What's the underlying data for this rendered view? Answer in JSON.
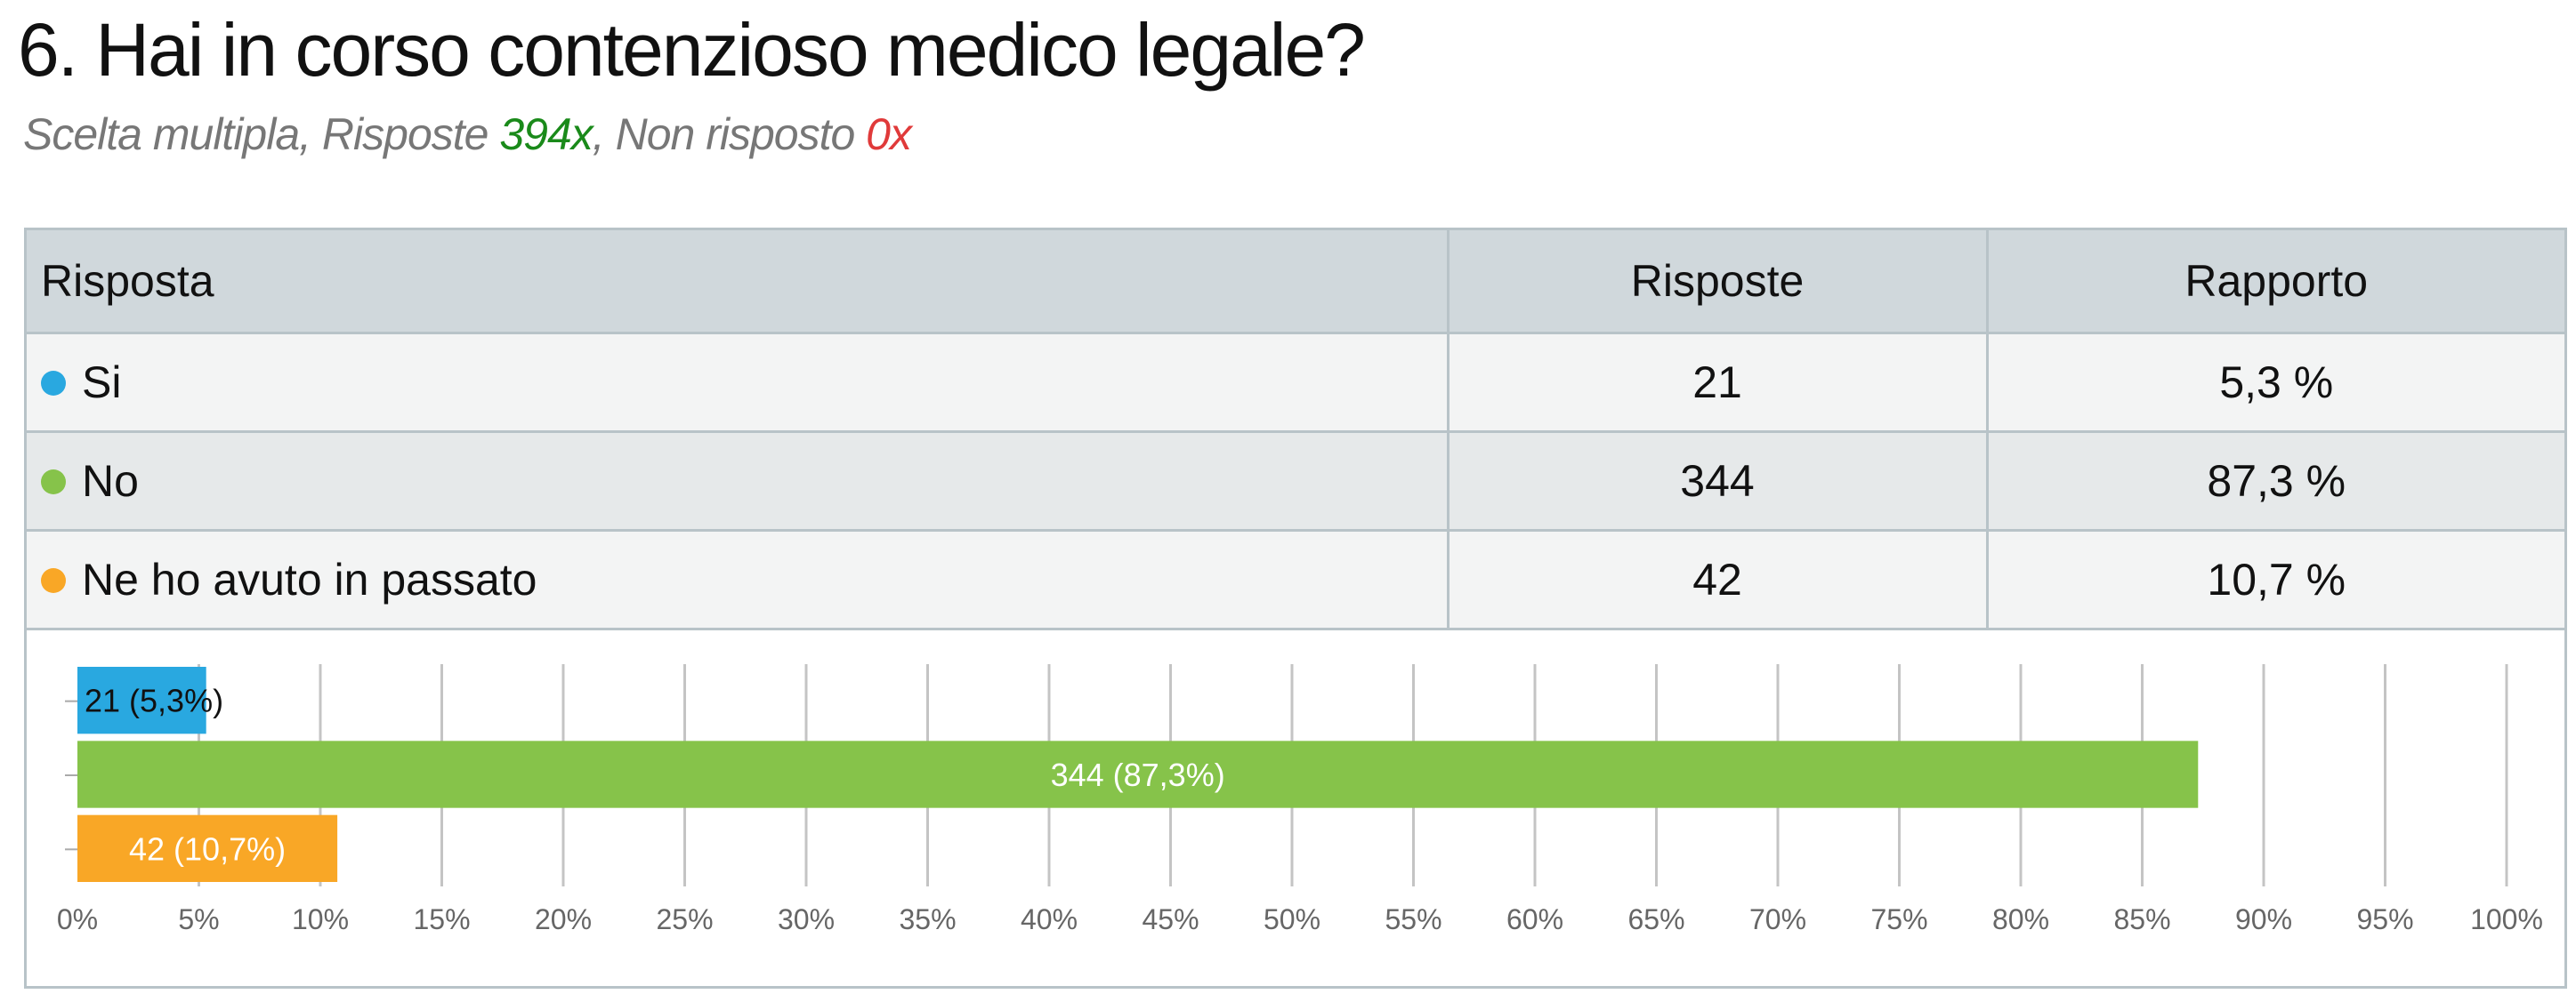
{
  "header": {
    "title": "6. Hai in corso contenzioso medico legale?",
    "subtitle": [
      "Scelta multipla, Risposte ",
      "394x",
      ", Non risposto ",
      "0x"
    ]
  },
  "table": {
    "columns": [
      "Risposta",
      "Risposte",
      "Rapporto"
    ],
    "rows": [
      [
        "Si",
        "21",
        "5,3 %"
      ],
      [
        "No",
        "344",
        "87,3 %"
      ],
      [
        "Ne ho avuto in passato",
        "42",
        "10,7 %"
      ]
    ]
  },
  "chart_data": {
    "type": "bar",
    "orientation": "horizontal",
    "categories": [
      null,
      null,
      null
    ],
    "values": [
      5.3,
      87.3,
      10.7
    ],
    "value_labels": [
      "21 (5,3%)",
      "344 (87,3%)",
      "42 (10,7%)"
    ],
    "colors": [
      "#29a8e0",
      "#86c34a",
      "#f9a726"
    ],
    "xlim": [
      0,
      100
    ],
    "xticks": [
      {
        "value": 0,
        "label": "0%"
      },
      {
        "value": 5,
        "label": "5%"
      },
      {
        "value": 10,
        "label": "10%"
      },
      {
        "value": 15,
        "label": "15%"
      },
      {
        "value": 20,
        "label": "20%"
      },
      {
        "value": 25,
        "label": "25%"
      },
      {
        "value": 30,
        "label": "30%"
      },
      {
        "value": 35,
        "label": "35%"
      },
      {
        "value": 40,
        "label": "40%"
      },
      {
        "value": 45,
        "label": "45%"
      },
      {
        "value": 50,
        "label": "50%"
      },
      {
        "value": 55,
        "label": "55%"
      },
      {
        "value": 60,
        "label": "60%"
      },
      {
        "value": 65,
        "label": "65%"
      },
      {
        "value": 70,
        "label": "70%"
      },
      {
        "value": 75,
        "label": "75%"
      },
      {
        "value": 80,
        "label": "80%"
      },
      {
        "value": 85,
        "label": "85%"
      },
      {
        "value": 90,
        "label": "90%"
      },
      {
        "value": 95,
        "label": "95%"
      },
      {
        "value": 100,
        "label": "100%"
      }
    ],
    "grid": true
  }
}
